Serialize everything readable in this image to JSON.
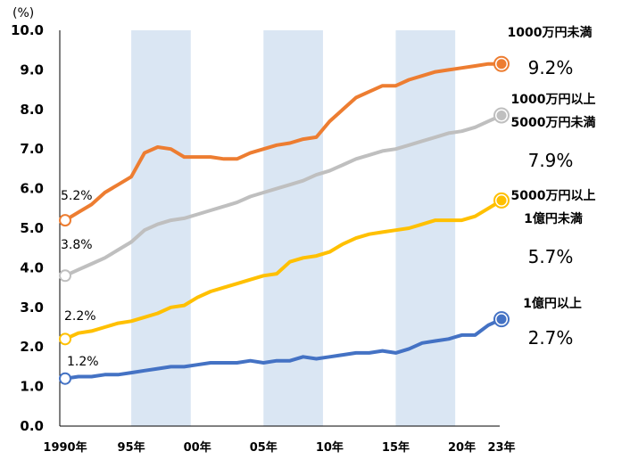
{
  "chart_data": {
    "type": "line",
    "unit_label": "(%)",
    "ylim": [
      0,
      10
    ],
    "yticks": [
      "0.0",
      "1.0",
      "2.0",
      "3.0",
      "4.0",
      "5.0",
      "6.0",
      "7.0",
      "8.0",
      "9.0",
      "10.0"
    ],
    "xlim": [
      1990,
      2023
    ],
    "xticks": [
      {
        "year": 1990,
        "label": "1990年"
      },
      {
        "year": 1995,
        "label": "95年"
      },
      {
        "year": 2000,
        "label": "00年"
      },
      {
        "year": 2005,
        "label": "05年"
      },
      {
        "year": 2010,
        "label": "10年"
      },
      {
        "year": 2015,
        "label": "15年"
      },
      {
        "year": 2020,
        "label": "20年"
      },
      {
        "year": 2023,
        "label": "23年"
      }
    ],
    "shaded_periods": [
      [
        1995,
        1999.5
      ],
      [
        2005,
        2009.5
      ],
      [
        2015,
        2019.5
      ]
    ],
    "shade_color": "#dae6f3",
    "x": [
      1990,
      1991,
      1992,
      1993,
      1994,
      1995,
      1996,
      1997,
      1998,
      1999,
      2000,
      2001,
      2002,
      2003,
      2004,
      2005,
      2006,
      2007,
      2008,
      2009,
      2010,
      2011,
      2012,
      2013,
      2014,
      2015,
      2016,
      2017,
      2018,
      2019,
      2020,
      2021,
      2022,
      2023
    ],
    "series": [
      {
        "name_lines": [
          "1000万円未満"
        ],
        "color": "#ed7d31",
        "start_label": "5.2%",
        "end_label": "9.2%",
        "values": [
          5.2,
          5.4,
          5.6,
          5.9,
          6.1,
          6.3,
          6.9,
          7.05,
          7.0,
          6.8,
          6.8,
          6.8,
          6.75,
          6.75,
          6.9,
          7.0,
          7.1,
          7.15,
          7.25,
          7.3,
          7.7,
          8.0,
          8.3,
          8.45,
          8.6,
          8.6,
          8.75,
          8.85,
          8.95,
          9.0,
          9.05,
          9.1,
          9.15,
          9.15
        ]
      },
      {
        "name_lines": [
          "1000万円以上",
          "5000万円未満"
        ],
        "color": "#bfbfbf",
        "start_label": "3.8%",
        "end_label": "7.9%",
        "values": [
          3.8,
          3.95,
          4.1,
          4.25,
          4.45,
          4.65,
          4.95,
          5.1,
          5.2,
          5.25,
          5.35,
          5.45,
          5.55,
          5.65,
          5.8,
          5.9,
          6.0,
          6.1,
          6.2,
          6.35,
          6.45,
          6.6,
          6.75,
          6.85,
          6.95,
          7.0,
          7.1,
          7.2,
          7.3,
          7.4,
          7.45,
          7.55,
          7.7,
          7.85
        ]
      },
      {
        "name_lines": [
          "5000万円以上",
          "1億円未満"
        ],
        "color": "#ffc000",
        "start_label": "2.2%",
        "end_label": "5.7%",
        "values": [
          2.2,
          2.35,
          2.4,
          2.5,
          2.6,
          2.65,
          2.75,
          2.85,
          3.0,
          3.05,
          3.25,
          3.4,
          3.5,
          3.6,
          3.7,
          3.8,
          3.85,
          4.15,
          4.25,
          4.3,
          4.4,
          4.6,
          4.75,
          4.85,
          4.9,
          4.95,
          5.0,
          5.1,
          5.2,
          5.2,
          5.2,
          5.3,
          5.5,
          5.7
        ]
      },
      {
        "name_lines": [
          "1億円以上"
        ],
        "color": "#4472c4",
        "start_label": "1.2%",
        "end_label": "2.7%",
        "values": [
          1.2,
          1.25,
          1.25,
          1.3,
          1.3,
          1.35,
          1.4,
          1.45,
          1.5,
          1.5,
          1.55,
          1.6,
          1.6,
          1.6,
          1.65,
          1.6,
          1.65,
          1.65,
          1.75,
          1.7,
          1.75,
          1.8,
          1.85,
          1.85,
          1.9,
          1.85,
          1.95,
          2.1,
          2.15,
          2.2,
          2.3,
          2.3,
          2.55,
          2.7
        ]
      }
    ]
  }
}
